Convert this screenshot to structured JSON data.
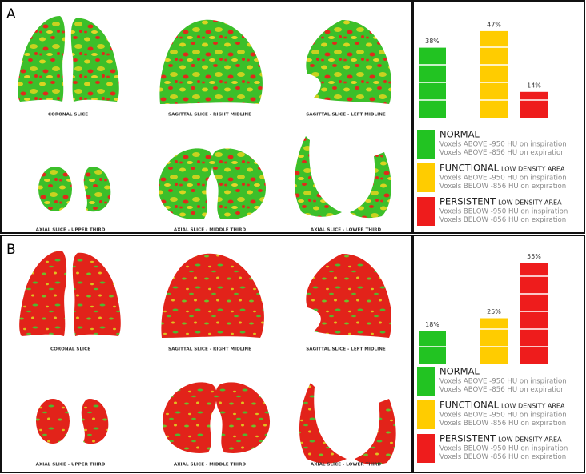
{
  "panels": [
    {
      "label": "A",
      "captions": [
        "CORONAL SLICE",
        "SAGITTAL SLICE - RIGHT MIDLINE",
        "SAGITTAL SLICE - LEFT MIDLINE",
        "AXIAL SLICE - UPPER THIRD",
        "AXIAL SLICE - MIDDLE THIRD",
        "AXIAL SLICE - LOWER THIRD"
      ]
    },
    {
      "label": "B",
      "captions": [
        "CORONAL SLICE",
        "SAGITTAL SLICE - RIGHT MIDLINE",
        "SAGITTAL SLICE - LEFT MIDLINE",
        "AXIAL SLICE - UPPER THIRD",
        "AXIAL SLICE - MIDDLE THIRD",
        "AXIAL SLICE - LOWER THIRD"
      ]
    }
  ],
  "chart_data": [
    {
      "type": "bar",
      "values": [
        38,
        47,
        14
      ],
      "value_labels": [
        "38%",
        "47%",
        "14%"
      ],
      "colors": [
        "#22c322",
        "#ffcc00",
        "#ee1c1c"
      ],
      "legend": [
        {
          "name": "NORMAL",
          "lines": [
            "Voxels ABOVE -950 HU on inspiration",
            "Voxels ABOVE -856 HU on expiration"
          ]
        },
        {
          "name": "FUNCTIONAL",
          "qualifier": "LOW DENSITY AREA",
          "lines": [
            "Voxels ABOVE -950 HU on inspiration",
            "Voxels BELOW -856 HU on expiration"
          ]
        },
        {
          "name": "PERSISTENT",
          "qualifier": "LOW DENSITY AREA",
          "lines": [
            "Voxels BELOW -950 HU on inspiration",
            "Voxels BELOW -856 HU on expiration"
          ]
        }
      ]
    },
    {
      "type": "bar",
      "values": [
        18,
        25,
        55
      ],
      "value_labels": [
        "18%",
        "25%",
        "55%"
      ],
      "colors": [
        "#22c322",
        "#ffcc00",
        "#ee1c1c"
      ],
      "legend": [
        {
          "name": "NORMAL",
          "lines": [
            "Voxels ABOVE -950 HU on inspiration",
            "Voxels ABOVE -856 HU on expiration"
          ]
        },
        {
          "name": "FUNCTIONAL",
          "qualifier": "LOW DENSITY AREA",
          "lines": [
            "Voxels ABOVE -950 HU on inspiration",
            "Voxels BELOW -856 HU on expiration"
          ]
        },
        {
          "name": "PERSISTENT",
          "qualifier": "LOW DENSITY AREA",
          "lines": [
            "Voxels BELOW -950 HU on inspiration",
            "Voxels BELOW -856 HU on expiration"
          ]
        }
      ]
    }
  ]
}
